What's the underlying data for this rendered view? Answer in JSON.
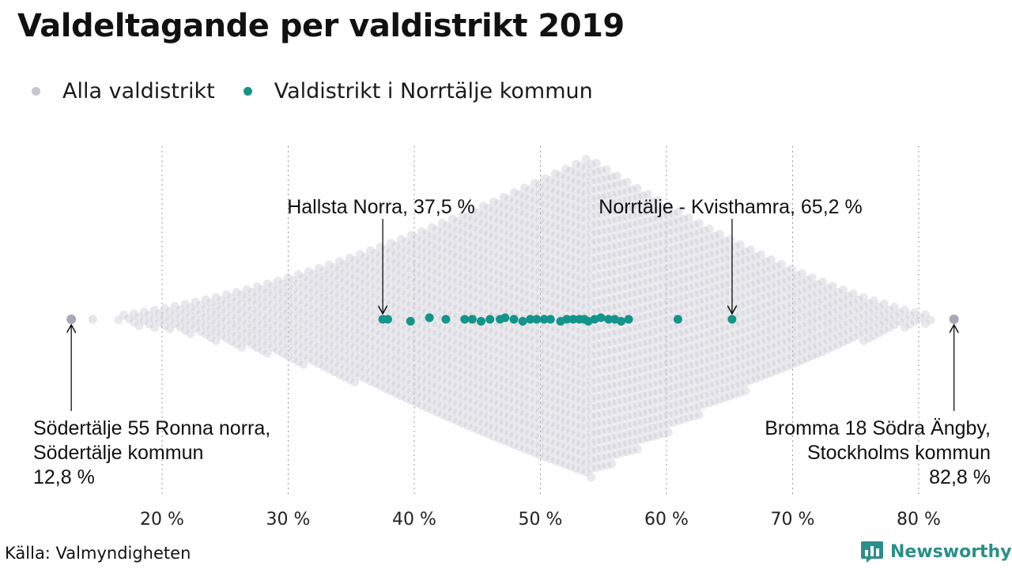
{
  "title": "Valdeltagande per valdistrikt 2019",
  "legend": [
    {
      "label": "Alla valdistrikt",
      "color": "#c6c5d0"
    },
    {
      "label": "Valdistrikt i Norrtälje kommun",
      "color": "#14948a"
    }
  ],
  "source": "Källa: Valmyndigheten",
  "brand": {
    "name": "Newsworthy",
    "icon": "bar-chart-speech-icon",
    "color": "#2a8f88"
  },
  "chart_data": {
    "type": "scatter",
    "variant": "beeswarm",
    "xlabel": "",
    "ylabel": "",
    "xlim": [
      12,
      84
    ],
    "ticks": [
      20,
      30,
      40,
      50,
      60,
      70,
      80
    ],
    "tick_labels": [
      "20 %",
      "30 %",
      "40 %",
      "50 %",
      "60 %",
      "70 %",
      "80 %"
    ],
    "grid": "vertical-dotted",
    "legend_position": "top-left",
    "distribution": {
      "series": "Alla valdistrikt",
      "color": "#c6c5d0",
      "min": 12.8,
      "max": 82.8,
      "peak": 53.8
    },
    "series": [
      {
        "name": "Valdistrikt i Norrtälje kommun",
        "color": "#14948a",
        "values": [
          37.5,
          37.9,
          39.7,
          41.2,
          42.5,
          44.0,
          44.6,
          45.3,
          46.0,
          46.8,
          47.2,
          47.9,
          48.6,
          49.2,
          49.7,
          50.3,
          50.8,
          51.6,
          52.1,
          52.6,
          53.1,
          53.5,
          53.8,
          54.3,
          54.8,
          55.4,
          55.9,
          56.4,
          57.0,
          60.9,
          65.2
        ]
      }
    ],
    "annotations": [
      {
        "label": "Hallsta Norra, 37,5 %",
        "x": 37.5
      },
      {
        "label": "Norrtälje - Kvisthamra, 65,2 %",
        "x": 65.2
      },
      {
        "label": [
          "Södertälje 55 Ronna norra,",
          "Södertälje kommun",
          "12,8 %"
        ],
        "x": 12.8
      },
      {
        "label": [
          "Bromma 18 Södra Ängby,",
          "Stockholms kommun",
          "82,8 %"
        ],
        "x": 82.8
      }
    ]
  }
}
